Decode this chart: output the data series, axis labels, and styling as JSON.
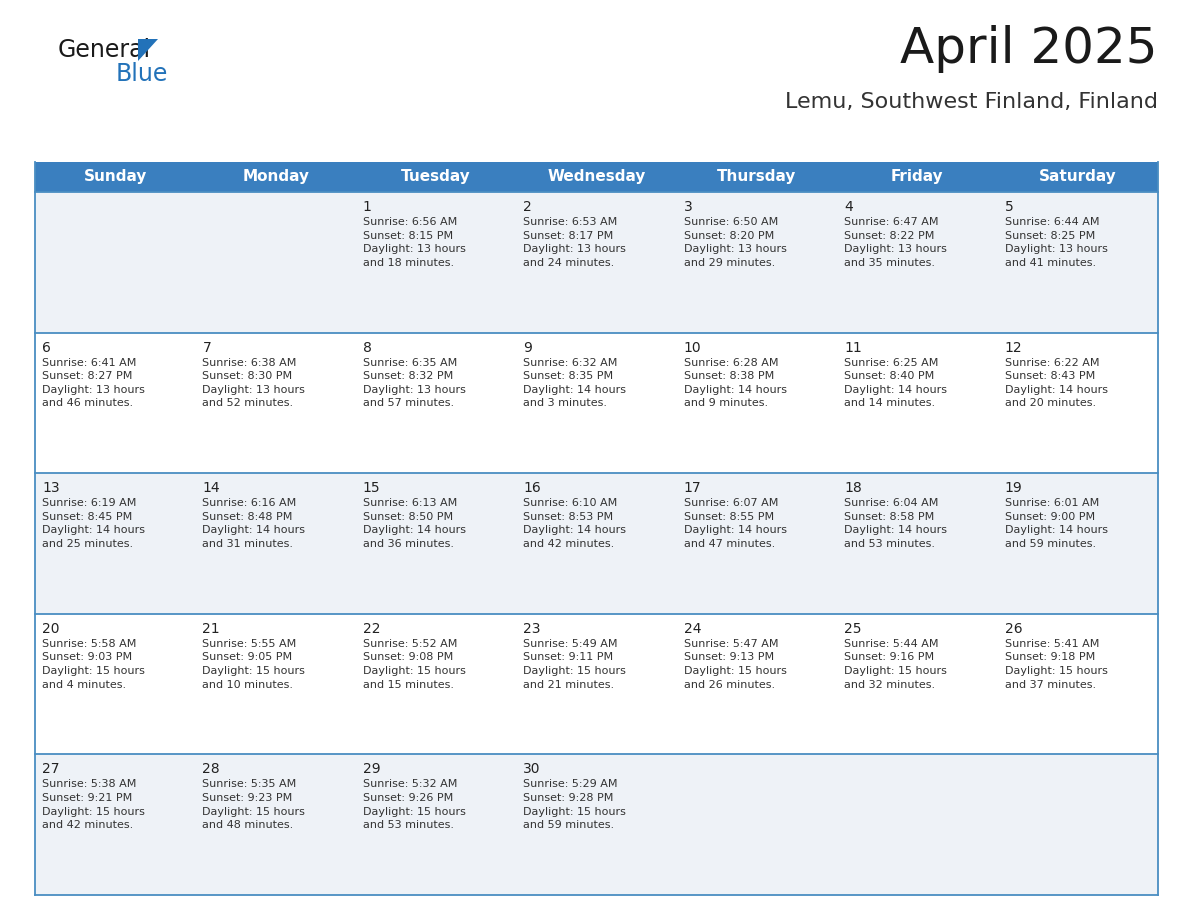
{
  "title": "April 2025",
  "subtitle": "Lemu, Southwest Finland, Finland",
  "header_bg": "#3a7fbf",
  "header_text_color": "#ffffff",
  "cell_bg_light": "#eef2f7",
  "cell_bg_white": "#ffffff",
  "border_color": "#4a8ec2",
  "day_number_color": "#222222",
  "day_text_color": "#333333",
  "day_names": [
    "Sunday",
    "Monday",
    "Tuesday",
    "Wednesday",
    "Thursday",
    "Friday",
    "Saturday"
  ],
  "title_fontsize": 36,
  "subtitle_fontsize": 16,
  "header_fontsize": 11,
  "day_num_fontsize": 10,
  "info_fontsize": 8,
  "logo_general_color": "#1a1a1a",
  "logo_blue_color": "#2272b9",
  "logo_triangle_color": "#2272b9",
  "weeks": [
    [
      {
        "day": "",
        "info": ""
      },
      {
        "day": "",
        "info": ""
      },
      {
        "day": "1",
        "info": "Sunrise: 6:56 AM\nSunset: 8:15 PM\nDaylight: 13 hours\nand 18 minutes."
      },
      {
        "day": "2",
        "info": "Sunrise: 6:53 AM\nSunset: 8:17 PM\nDaylight: 13 hours\nand 24 minutes."
      },
      {
        "day": "3",
        "info": "Sunrise: 6:50 AM\nSunset: 8:20 PM\nDaylight: 13 hours\nand 29 minutes."
      },
      {
        "day": "4",
        "info": "Sunrise: 6:47 AM\nSunset: 8:22 PM\nDaylight: 13 hours\nand 35 minutes."
      },
      {
        "day": "5",
        "info": "Sunrise: 6:44 AM\nSunset: 8:25 PM\nDaylight: 13 hours\nand 41 minutes."
      }
    ],
    [
      {
        "day": "6",
        "info": "Sunrise: 6:41 AM\nSunset: 8:27 PM\nDaylight: 13 hours\nand 46 minutes."
      },
      {
        "day": "7",
        "info": "Sunrise: 6:38 AM\nSunset: 8:30 PM\nDaylight: 13 hours\nand 52 minutes."
      },
      {
        "day": "8",
        "info": "Sunrise: 6:35 AM\nSunset: 8:32 PM\nDaylight: 13 hours\nand 57 minutes."
      },
      {
        "day": "9",
        "info": "Sunrise: 6:32 AM\nSunset: 8:35 PM\nDaylight: 14 hours\nand 3 minutes."
      },
      {
        "day": "10",
        "info": "Sunrise: 6:28 AM\nSunset: 8:38 PM\nDaylight: 14 hours\nand 9 minutes."
      },
      {
        "day": "11",
        "info": "Sunrise: 6:25 AM\nSunset: 8:40 PM\nDaylight: 14 hours\nand 14 minutes."
      },
      {
        "day": "12",
        "info": "Sunrise: 6:22 AM\nSunset: 8:43 PM\nDaylight: 14 hours\nand 20 minutes."
      }
    ],
    [
      {
        "day": "13",
        "info": "Sunrise: 6:19 AM\nSunset: 8:45 PM\nDaylight: 14 hours\nand 25 minutes."
      },
      {
        "day": "14",
        "info": "Sunrise: 6:16 AM\nSunset: 8:48 PM\nDaylight: 14 hours\nand 31 minutes."
      },
      {
        "day": "15",
        "info": "Sunrise: 6:13 AM\nSunset: 8:50 PM\nDaylight: 14 hours\nand 36 minutes."
      },
      {
        "day": "16",
        "info": "Sunrise: 6:10 AM\nSunset: 8:53 PM\nDaylight: 14 hours\nand 42 minutes."
      },
      {
        "day": "17",
        "info": "Sunrise: 6:07 AM\nSunset: 8:55 PM\nDaylight: 14 hours\nand 47 minutes."
      },
      {
        "day": "18",
        "info": "Sunrise: 6:04 AM\nSunset: 8:58 PM\nDaylight: 14 hours\nand 53 minutes."
      },
      {
        "day": "19",
        "info": "Sunrise: 6:01 AM\nSunset: 9:00 PM\nDaylight: 14 hours\nand 59 minutes."
      }
    ],
    [
      {
        "day": "20",
        "info": "Sunrise: 5:58 AM\nSunset: 9:03 PM\nDaylight: 15 hours\nand 4 minutes."
      },
      {
        "day": "21",
        "info": "Sunrise: 5:55 AM\nSunset: 9:05 PM\nDaylight: 15 hours\nand 10 minutes."
      },
      {
        "day": "22",
        "info": "Sunrise: 5:52 AM\nSunset: 9:08 PM\nDaylight: 15 hours\nand 15 minutes."
      },
      {
        "day": "23",
        "info": "Sunrise: 5:49 AM\nSunset: 9:11 PM\nDaylight: 15 hours\nand 21 minutes."
      },
      {
        "day": "24",
        "info": "Sunrise: 5:47 AM\nSunset: 9:13 PM\nDaylight: 15 hours\nand 26 minutes."
      },
      {
        "day": "25",
        "info": "Sunrise: 5:44 AM\nSunset: 9:16 PM\nDaylight: 15 hours\nand 32 minutes."
      },
      {
        "day": "26",
        "info": "Sunrise: 5:41 AM\nSunset: 9:18 PM\nDaylight: 15 hours\nand 37 minutes."
      }
    ],
    [
      {
        "day": "27",
        "info": "Sunrise: 5:38 AM\nSunset: 9:21 PM\nDaylight: 15 hours\nand 42 minutes."
      },
      {
        "day": "28",
        "info": "Sunrise: 5:35 AM\nSunset: 9:23 PM\nDaylight: 15 hours\nand 48 minutes."
      },
      {
        "day": "29",
        "info": "Sunrise: 5:32 AM\nSunset: 9:26 PM\nDaylight: 15 hours\nand 53 minutes."
      },
      {
        "day": "30",
        "info": "Sunrise: 5:29 AM\nSunset: 9:28 PM\nDaylight: 15 hours\nand 59 minutes."
      },
      {
        "day": "",
        "info": ""
      },
      {
        "day": "",
        "info": ""
      },
      {
        "day": "",
        "info": ""
      }
    ]
  ]
}
